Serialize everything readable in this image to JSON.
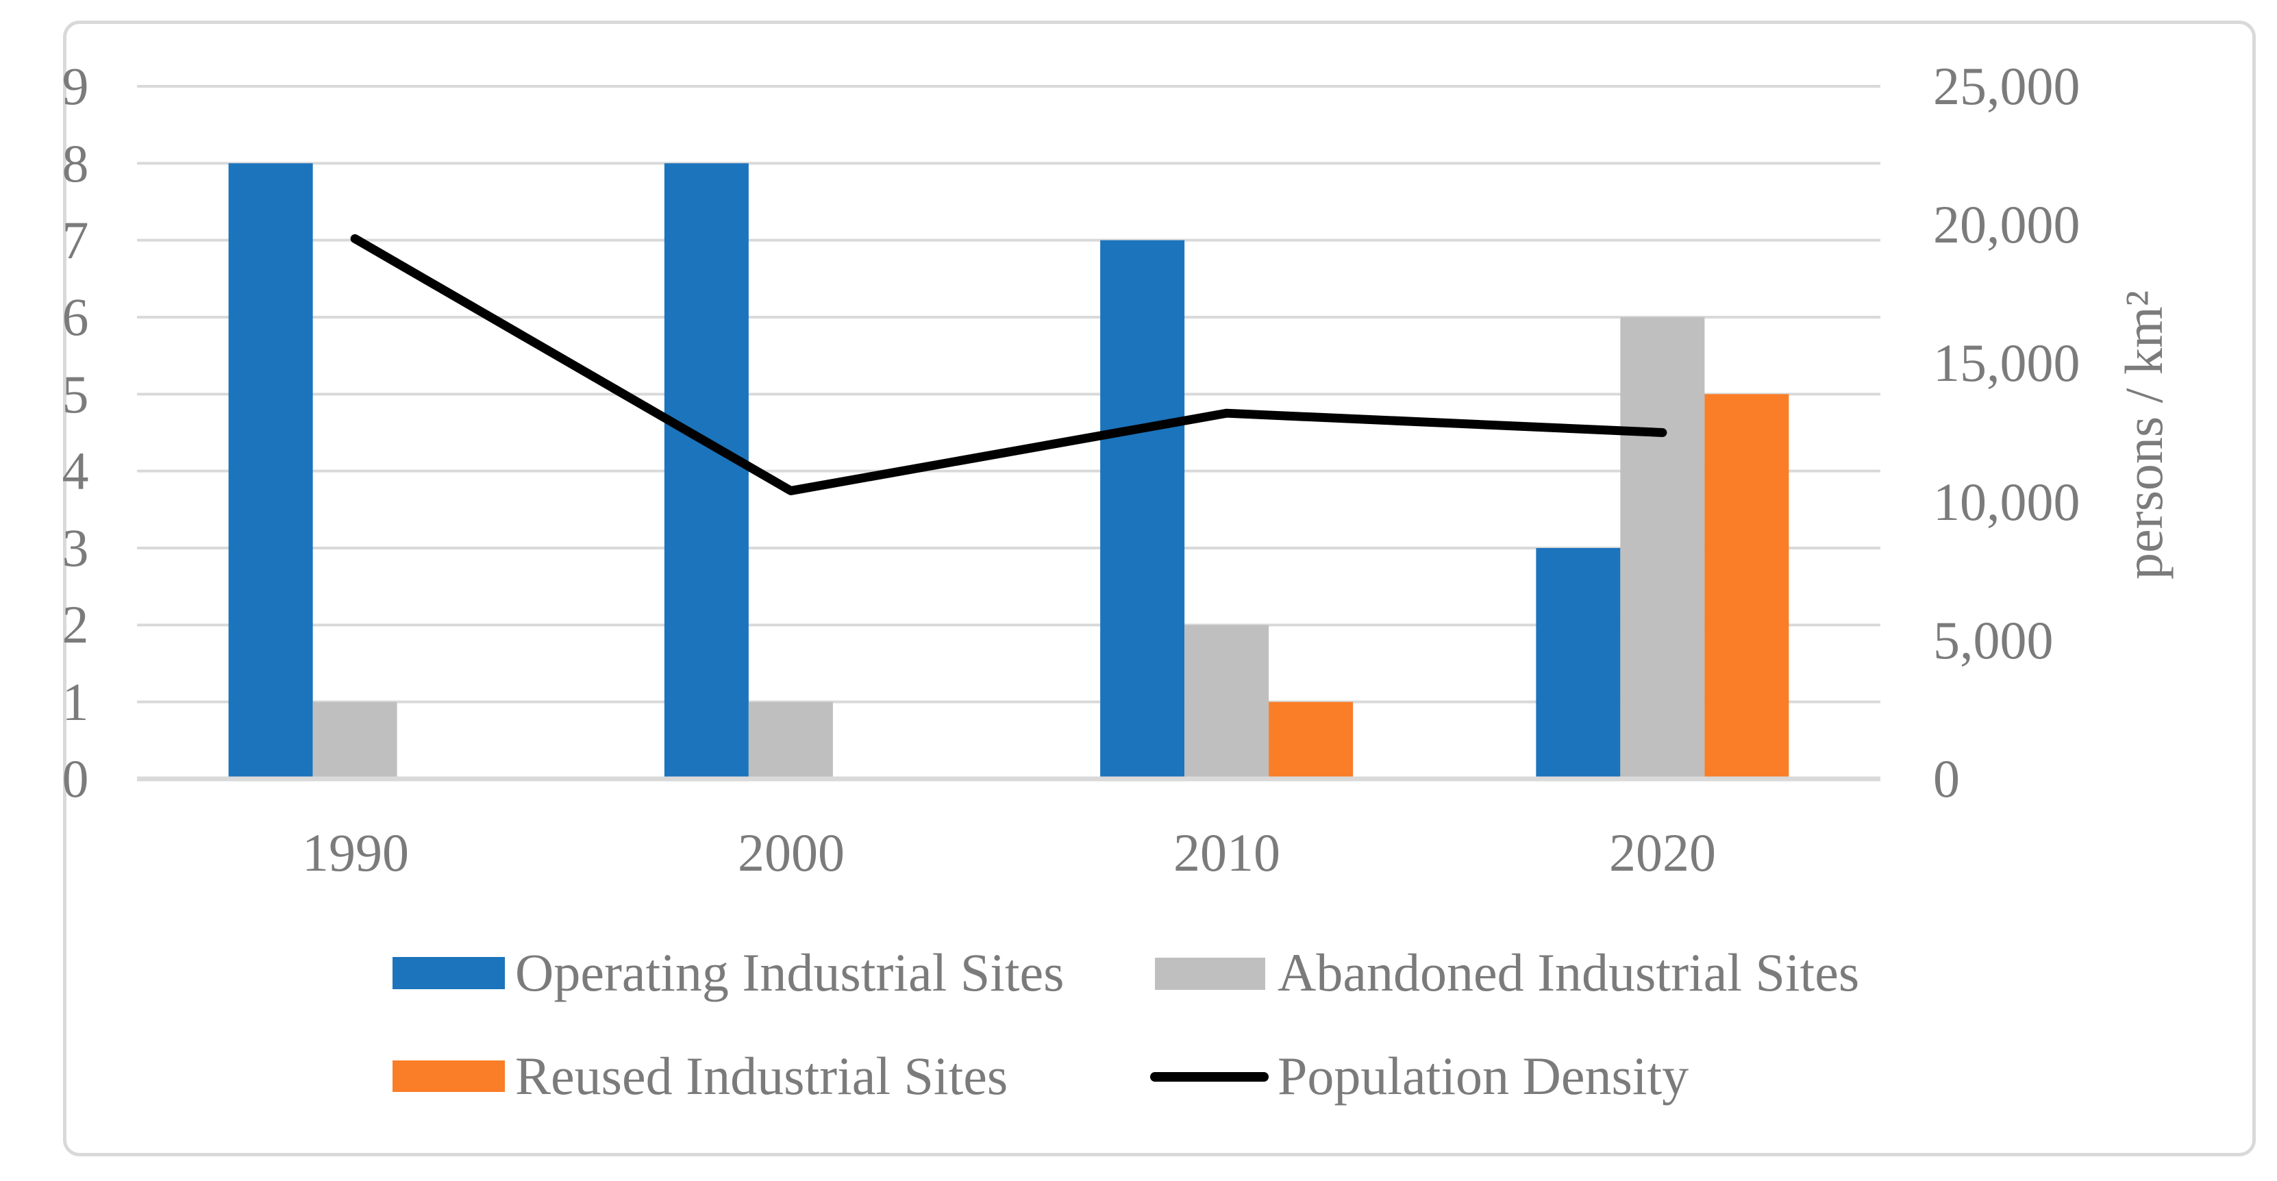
{
  "chart_data": {
    "type": "combo",
    "title": "",
    "categories": [
      "1990",
      "2000",
      "2010",
      "2020"
    ],
    "series": [
      {
        "name": "Operating Industrial Sites",
        "type": "bar",
        "color": "#1B74BC",
        "axis": "left",
        "values": [
          8,
          8,
          7,
          3
        ]
      },
      {
        "name": "Abandoned Industrial Sites",
        "type": "bar",
        "color": "#BFBFBF",
        "axis": "left",
        "values": [
          1,
          1,
          2,
          6
        ]
      },
      {
        "name": "Reused Industrial Sites",
        "type": "bar",
        "color": "#FA7D28",
        "axis": "left",
        "values": [
          0,
          0,
          1,
          5
        ]
      },
      {
        "name": "Population Density",
        "type": "line",
        "color": "#000000",
        "axis": "right",
        "values": [
          19500,
          10400,
          13200,
          12500
        ]
      }
    ],
    "left_axis": {
      "min": 0,
      "max": 9,
      "ticks": [
        "0",
        "1",
        "2",
        "3",
        "4",
        "5",
        "6",
        "7",
        "8",
        "9"
      ]
    },
    "right_axis": {
      "min": 0,
      "max": 25000,
      "title": "persons / km²",
      "ticks": [
        "0",
        "5,000",
        "10,000",
        "15,000",
        "20,000",
        "25,000"
      ]
    },
    "grid": true,
    "legend_position": "bottom",
    "colors": {
      "gridline": "#D9D9D9",
      "axis_line": "#D9D9D9",
      "text": "#7B7B7B",
      "frame_border": "#D9D9D9",
      "background": "#FFFFFF"
    }
  }
}
